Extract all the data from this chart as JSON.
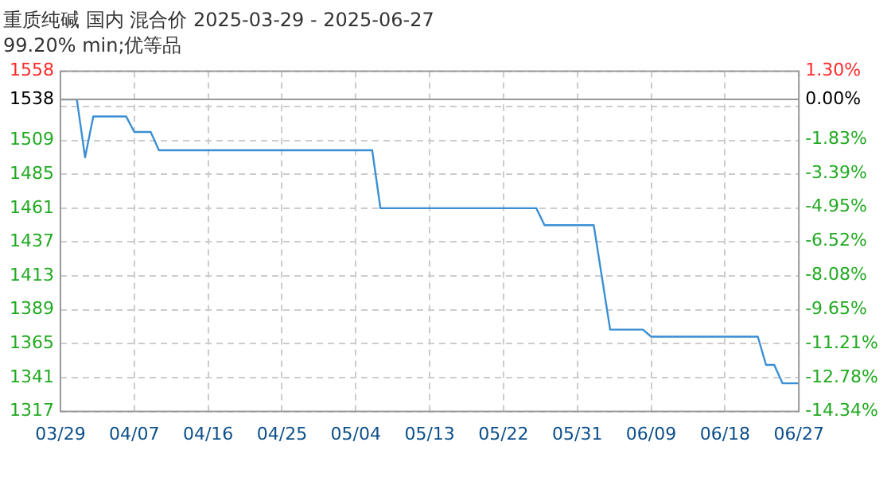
{
  "chart_data": {
    "type": "line",
    "title": "重质纯碱 国内 混合价 2025-03-29 - 2025-06-27",
    "subtitle": "99.20% min;优等品",
    "x": [
      "2025-03-29",
      "2025-03-31",
      "2025-04-01",
      "2025-04-02",
      "2025-04-06",
      "2025-04-07",
      "2025-04-09",
      "2025-04-10",
      "2025-05-06",
      "2025-05-07",
      "2025-05-26",
      "2025-05-27",
      "2025-06-02",
      "2025-06-04",
      "2025-06-08",
      "2025-06-09",
      "2025-06-22",
      "2025-06-23",
      "2025-06-24",
      "2025-06-25",
      "2025-06-27"
    ],
    "series": [
      {
        "color": "#3a8fd4",
        "values": [
          1538,
          1538,
          1497,
          1526,
          1526,
          1515,
          1515,
          1502,
          1502,
          1461,
          1461,
          1449,
          1449,
          1375,
          1375,
          1370,
          1370,
          1350,
          1350,
          1337,
          1337
        ]
      }
    ],
    "xlim": [
      "2025-03-29",
      "2025-06-27"
    ],
    "xticks": [
      {
        "value": "2025-03-29",
        "label": "03/29"
      },
      {
        "value": "2025-04-07",
        "label": "04/07"
      },
      {
        "value": "2025-04-16",
        "label": "04/16"
      },
      {
        "value": "2025-04-25",
        "label": "04/25"
      },
      {
        "value": "2025-05-04",
        "label": "05/04"
      },
      {
        "value": "2025-05-13",
        "label": "05/13"
      },
      {
        "value": "2025-05-22",
        "label": "05/22"
      },
      {
        "value": "2025-05-31",
        "label": "05/31"
      },
      {
        "value": "2025-06-09",
        "label": "06/09"
      },
      {
        "value": "2025-06-18",
        "label": "06/18"
      },
      {
        "value": "2025-06-27",
        "label": "06/27"
      }
    ],
    "ylim": [
      1317,
      1558
    ],
    "yticks": [
      1317,
      1341,
      1365,
      1389,
      1413,
      1437,
      1461,
      1485,
      1509,
      {
        "value": 1533,
        "label": null
      },
      1538,
      1558
    ],
    "y2lim": [
      -14.34,
      1.3
    ],
    "y2ticks": [
      {
        "value": -14.34,
        "label": "-14.34%"
      },
      {
        "value": -12.78,
        "label": "-12.78%"
      },
      {
        "value": -11.21,
        "label": "-11.21%"
      },
      {
        "value": -9.65,
        "label": "-9.65%"
      },
      {
        "value": -8.08,
        "label": "-8.08%"
      },
      {
        "value": -6.52,
        "label": "-6.52%"
      },
      {
        "value": -4.95,
        "label": "-4.95%"
      },
      {
        "value": -3.39,
        "label": "-3.39%"
      },
      {
        "value": -1.83,
        "label": "-1.83%"
      },
      {
        "value": 0,
        "label": "0.00%"
      },
      {
        "value": 1.3,
        "label": "1.30%"
      }
    ],
    "ref_lines": [
      {
        "axis": "y",
        "value": 1538,
        "color": "#999999"
      }
    ],
    "grid": true,
    "line_style": "solid",
    "marker": "none",
    "legend": false
  }
}
